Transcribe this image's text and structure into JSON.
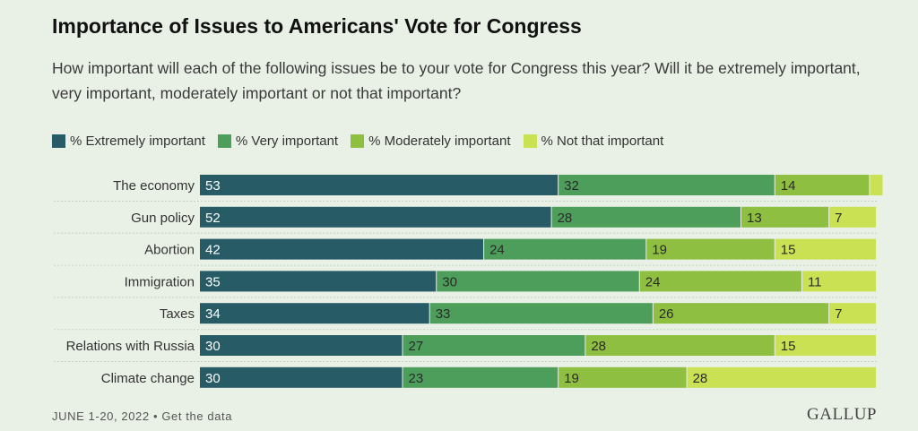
{
  "header": {
    "title": "Importance of Issues to Americans' Vote for Congress",
    "subtitle": "How important will each of the following issues be to your vote for Congress this year? Will it be extremely important, very important, moderately important or not that important?"
  },
  "footer": {
    "date": "JUNE 1-20, 2022",
    "separator": " • ",
    "link": "Get the data",
    "brand": "GALLUP"
  },
  "chart_data": {
    "type": "bar",
    "orientation": "horizontal",
    "stacked": true,
    "xlim": [
      0,
      100
    ],
    "legend_position": "top-left",
    "grid": false,
    "categories": [
      "The economy",
      "Gun policy",
      "Abortion",
      "Immigration",
      "Taxes",
      "Relations with Russia",
      "Climate change"
    ],
    "series": [
      {
        "name": "% Extremely important",
        "color": "#275b66",
        "values": [
          53,
          52,
          42,
          35,
          34,
          30,
          30
        ],
        "labels": [
          "53",
          "52",
          "42",
          "35",
          "34",
          "30",
          "30"
        ]
      },
      {
        "name": "% Very important",
        "color": "#4d9e5a",
        "values": [
          32,
          28,
          24,
          30,
          33,
          27,
          23
        ],
        "labels": [
          "32",
          "28",
          "24",
          "30",
          "33",
          "27",
          "23"
        ]
      },
      {
        "name": "% Moderately important",
        "color": "#8fbf41",
        "values": [
          14,
          13,
          19,
          24,
          26,
          28,
          19
        ],
        "labels": [
          "14",
          "13",
          "19",
          "24",
          "26",
          "28",
          "19"
        ]
      },
      {
        "name": "% Not that important",
        "color": "#c9e153",
        "values": [
          2,
          7,
          15,
          11,
          7,
          15,
          28
        ],
        "labels": [
          "",
          "7",
          "15",
          "11",
          "7",
          "15",
          "28"
        ]
      }
    ]
  }
}
